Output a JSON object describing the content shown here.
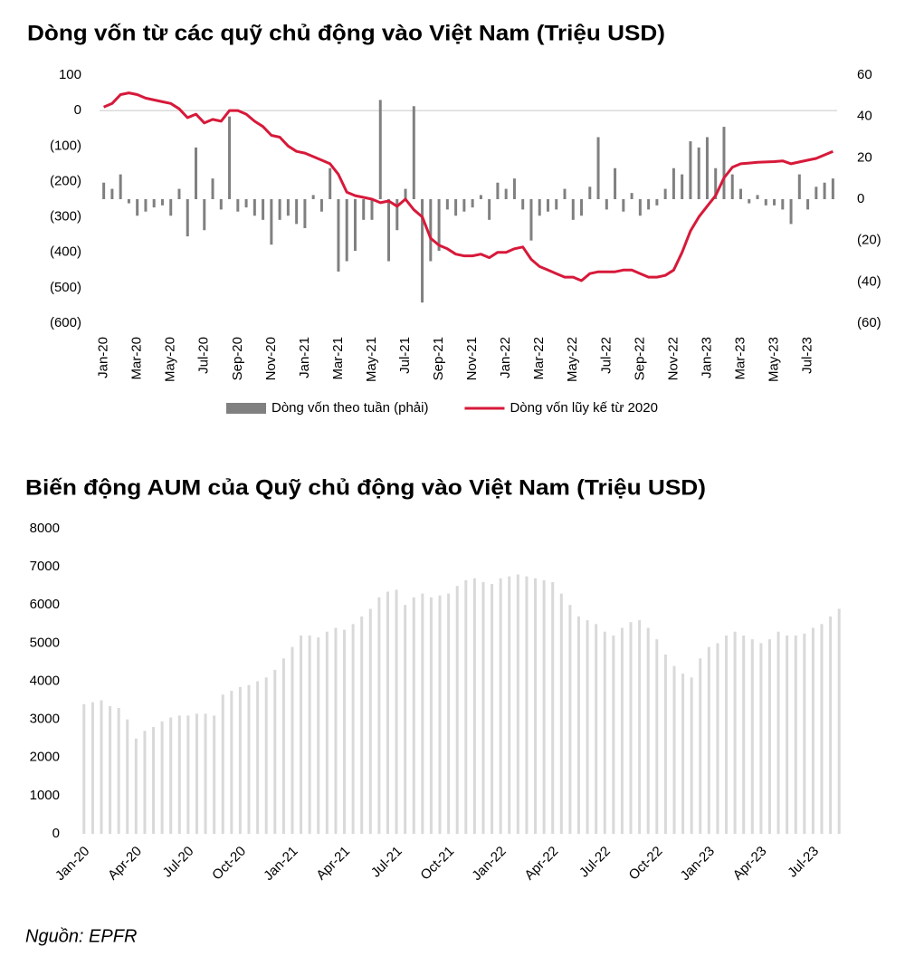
{
  "chart_data": [
    {
      "type": "combo",
      "title": "Dòng vốn từ các quỹ chủ động vào Việt Nam (Triệu USD)",
      "categories": [
        "Jan-20",
        null,
        null,
        null,
        "Mar-20",
        null,
        null,
        null,
        "May-20",
        null,
        null,
        null,
        "Jul-20",
        null,
        null,
        null,
        "Sep-20",
        null,
        null,
        null,
        "Nov-20",
        null,
        null,
        null,
        "Jan-21",
        null,
        null,
        null,
        "Mar-21",
        null,
        null,
        null,
        "May-21",
        null,
        null,
        null,
        "Jul-21",
        null,
        null,
        null,
        "Sep-21",
        null,
        null,
        null,
        "Nov-21",
        null,
        null,
        null,
        "Jan-22",
        null,
        null,
        null,
        "Mar-22",
        null,
        null,
        null,
        "May-22",
        null,
        null,
        null,
        "Jul-22",
        null,
        null,
        null,
        "Sep-22",
        null,
        null,
        null,
        "Nov-22",
        null,
        null,
        null,
        "Jan-23",
        null,
        null,
        null,
        "Mar-23",
        null,
        null,
        null,
        "May-23",
        null,
        null,
        null,
        "Jul-23",
        null,
        null,
        null
      ],
      "series": [
        {
          "name": "Dòng vốn theo tuần (phải)",
          "type": "bar",
          "axis": "y2",
          "color": "#808080",
          "values": [
            8,
            5,
            12,
            -2,
            -8,
            -6,
            -4,
            -3,
            -8,
            5,
            -18,
            25,
            -15,
            10,
            -5,
            40,
            -6,
            -4,
            -8,
            -10,
            -22,
            -10,
            -8,
            -12,
            -14,
            2,
            -6,
            15,
            -35,
            -30,
            -25,
            -10,
            -10,
            48,
            -30,
            -15,
            5,
            45,
            -50,
            -30,
            -25,
            -5,
            -8,
            -6,
            -4,
            2,
            -10,
            8,
            5,
            10,
            -5,
            -20,
            -8,
            -6,
            -5,
            5,
            -10,
            -8,
            6,
            30,
            -5,
            15,
            -6,
            3,
            -8,
            -5,
            -3,
            5,
            15,
            12,
            28,
            25,
            30,
            15,
            35,
            12,
            5,
            -2,
            2,
            -3,
            -3,
            -5,
            -12,
            12,
            -5,
            6,
            8,
            10
          ]
        },
        {
          "name": "Dòng vốn lũy kế từ 2020",
          "type": "line",
          "color": "#d7193a",
          "values": [
            10,
            20,
            45,
            50,
            45,
            35,
            30,
            25,
            20,
            5,
            -20,
            -10,
            -35,
            -25,
            -30,
            0,
            0,
            -10,
            -30,
            -45,
            -70,
            -75,
            -100,
            -115,
            -120,
            -130,
            -140,
            -150,
            -180,
            -230,
            -240,
            -245,
            -250,
            -260,
            -255,
            -270,
            -250,
            -280,
            -300,
            -360,
            -380,
            -390,
            -405,
            -410,
            -410,
            -405,
            -415,
            -400,
            -400,
            -390,
            -385,
            -420,
            -440,
            -450,
            -460,
            -470,
            -470,
            -480,
            -460,
            -455,
            -455,
            -455,
            -450,
            -450,
            -460,
            -470,
            -470,
            -465,
            -450,
            -400,
            -340,
            -300,
            -270,
            -240,
            -190,
            -160,
            -150,
            -148,
            -146,
            -145,
            -144,
            -142,
            -150,
            -145,
            -140,
            -135,
            -125,
            -115
          ]
        }
      ],
      "ylim": [
        -600,
        100
      ],
      "yticks": [
        100,
        0,
        {
          "value": -100,
          "label": "(100)"
        },
        {
          "value": -200,
          "label": "(200)"
        },
        {
          "value": -300,
          "label": "(300)"
        },
        {
          "value": -400,
          "label": "(400)"
        },
        {
          "value": -500,
          "label": "(500)"
        },
        {
          "value": -600,
          "label": "(600)"
        }
      ],
      "y2lim": [
        -60,
        60
      ],
      "y2ticks": [
        60,
        40,
        20,
        0,
        {
          "value": -20,
          "label": "(20)"
        },
        {
          "value": -40,
          "label": "(40)"
        },
        {
          "value": -60,
          "label": "(60)"
        }
      ],
      "negative_tick_color": "#c00000",
      "legend": "bottom"
    },
    {
      "type": "bar",
      "title": "Biến động AUM của Quỹ chủ động vào Việt Nam (Triệu USD)",
      "categories": [
        "Jan-20",
        null,
        null,
        null,
        null,
        null,
        "Apr-20",
        null,
        null,
        null,
        null,
        null,
        "Jul-20",
        null,
        null,
        null,
        null,
        null,
        "Oct-20",
        null,
        null,
        null,
        null,
        null,
        "Jan-21",
        null,
        null,
        null,
        null,
        null,
        "Apr-21",
        null,
        null,
        null,
        null,
        null,
        "Jul-21",
        null,
        null,
        null,
        null,
        null,
        "Oct-21",
        null,
        null,
        null,
        null,
        null,
        "Jan-22",
        null,
        null,
        null,
        null,
        null,
        "Apr-22",
        null,
        null,
        null,
        null,
        null,
        "Jul-22",
        null,
        null,
        null,
        null,
        null,
        "Oct-22",
        null,
        null,
        null,
        null,
        null,
        "Jan-23",
        null,
        null,
        null,
        null,
        null,
        "Apr-23",
        null,
        null,
        null,
        null,
        null,
        "Jul-23",
        null,
        null,
        null
      ],
      "values": [
        3400,
        3450,
        3500,
        3350,
        3300,
        3000,
        2500,
        2700,
        2800,
        2950,
        3050,
        3100,
        3100,
        3150,
        3150,
        3100,
        3650,
        3750,
        3850,
        3900,
        4000,
        4100,
        4300,
        4600,
        4900,
        5200,
        5200,
        5150,
        5300,
        5400,
        5350,
        5500,
        5700,
        5900,
        6200,
        6350,
        6400,
        6000,
        6200,
        6300,
        6200,
        6250,
        6300,
        6500,
        6650,
        6700,
        6600,
        6550,
        6700,
        6750,
        6800,
        6750,
        6700,
        6650,
        6600,
        6300,
        6000,
        5700,
        5600,
        5500,
        5300,
        5200,
        5400,
        5550,
        5600,
        5400,
        5100,
        4700,
        4400,
        4200,
        4100,
        4600,
        4900,
        5000,
        5200,
        5300,
        5200,
        5100,
        5000,
        5100,
        5300,
        5200,
        5200,
        5250,
        5400,
        5500,
        5700,
        5900
      ],
      "color": "#d9d9d9",
      "ylim": [
        0,
        8000
      ],
      "yticks": [
        0,
        1000,
        2000,
        3000,
        4000,
        5000,
        6000,
        7000,
        8000
      ],
      "source": "Nguồn: EPFR"
    }
  ]
}
